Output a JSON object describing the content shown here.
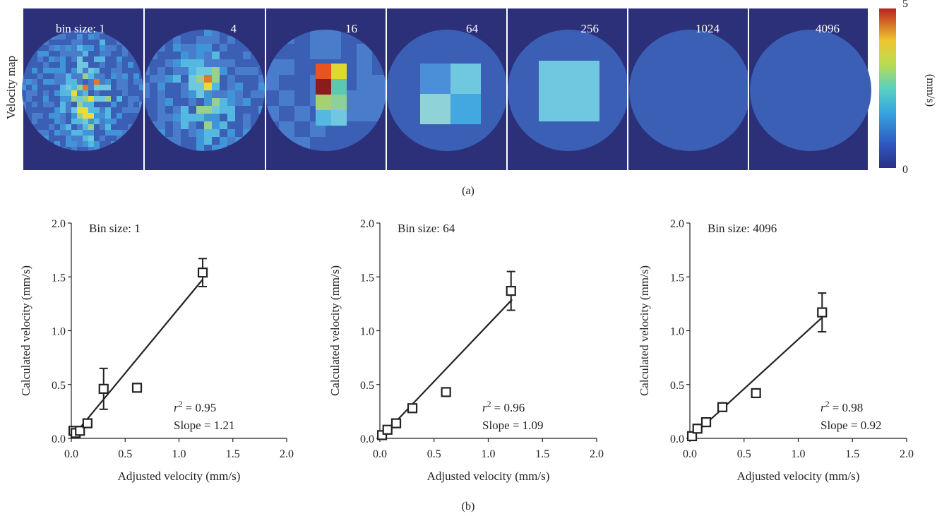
{
  "figure": {
    "label_a": "(a)",
    "label_b": "(b)"
  },
  "panel_a": {
    "row_label": "Velocity map",
    "panel_labels": [
      "bin size: 1",
      "4",
      "16",
      "64",
      "256",
      "1024",
      "4096"
    ],
    "colorbar": {
      "min_label": "0",
      "max_label": "5",
      "unit_label": "(mm/s)",
      "range": [
        0,
        5
      ]
    },
    "colors": {
      "background": "#2b3079",
      "disk_base": "#3a5fb4",
      "bright": "#6fc8e0",
      "hot": "#d03025",
      "yellow": "#e8dc3a"
    }
  },
  "chart_data": [
    {
      "type": "scatter",
      "title": "Bin size: 1",
      "xlabel": "Adjusted velocity (mm/s)",
      "ylabel": "Calculated velocity (mm/s)",
      "xlim": [
        0,
        2.0
      ],
      "ylim": [
        0,
        2.0
      ],
      "x_ticks": [
        "0.0",
        "0.5",
        "1.0",
        "1.5",
        "2.0"
      ],
      "y_ticks": [
        "0.0",
        "0.5",
        "1.0",
        "1.5",
        "2.0"
      ],
      "points": [
        {
          "x": 0.02,
          "y": 0.07,
          "err": 0
        },
        {
          "x": 0.04,
          "y": 0.05,
          "err": 0
        },
        {
          "x": 0.08,
          "y": 0.07,
          "err": 0
        },
        {
          "x": 0.15,
          "y": 0.14,
          "err": 0
        },
        {
          "x": 0.3,
          "y": 0.46,
          "err": 0.19
        },
        {
          "x": 0.61,
          "y": 0.47,
          "err": 0
        },
        {
          "x": 1.22,
          "y": 1.54,
          "err": 0.13
        }
      ],
      "fit_slope": 1.21,
      "fit_intercept": 0,
      "r2_label": "= 0.95",
      "slope_label": "Slope = 1.21"
    },
    {
      "type": "scatter",
      "title": "Bin size: 64",
      "xlabel": "Adjusted velocity (mm/s)",
      "ylabel": "Calculated velocity (mm/s)",
      "xlim": [
        0,
        2.0
      ],
      "ylim": [
        0,
        2.0
      ],
      "x_ticks": [
        "0.0",
        "0.5",
        "1.0",
        "1.5",
        "2.0"
      ],
      "y_ticks": [
        "0.0",
        "0.5",
        "1.0",
        "1.5",
        "2.0"
      ],
      "points": [
        {
          "x": 0.02,
          "y": 0.03,
          "err": 0
        },
        {
          "x": 0.07,
          "y": 0.08,
          "err": 0
        },
        {
          "x": 0.15,
          "y": 0.14,
          "err": 0
        },
        {
          "x": 0.3,
          "y": 0.28,
          "err": 0
        },
        {
          "x": 0.61,
          "y": 0.43,
          "err": 0
        },
        {
          "x": 1.21,
          "y": 1.37,
          "err": 0.18
        }
      ],
      "fit_slope": 1.09,
      "fit_intercept": -0.04,
      "r2_label": "= 0.96",
      "slope_label": "Slope = 1.09"
    },
    {
      "type": "scatter",
      "title": "Bin size: 4096",
      "xlabel": "Adjusted velocity (mm/s)",
      "ylabel": "Calculated velocity (mm/s)",
      "xlim": [
        0,
        2.0
      ],
      "ylim": [
        0,
        2.0
      ],
      "x_ticks": [
        "0.0",
        "0.5",
        "1.0",
        "1.5",
        "2.0"
      ],
      "y_ticks": [
        "0.0",
        "0.5",
        "1.0",
        "1.5",
        "2.0"
      ],
      "points": [
        {
          "x": 0.02,
          "y": 0.02,
          "err": 0
        },
        {
          "x": 0.07,
          "y": 0.09,
          "err": 0
        },
        {
          "x": 0.15,
          "y": 0.15,
          "err": 0
        },
        {
          "x": 0.3,
          "y": 0.29,
          "err": 0
        },
        {
          "x": 0.61,
          "y": 0.42,
          "err": 0
        },
        {
          "x": 1.22,
          "y": 1.17,
          "err": 0.18
        }
      ],
      "fit_slope": 0.92,
      "fit_intercept": 0,
      "r2_label": "= 0.98",
      "slope_label": "Slope = 0.92"
    }
  ]
}
